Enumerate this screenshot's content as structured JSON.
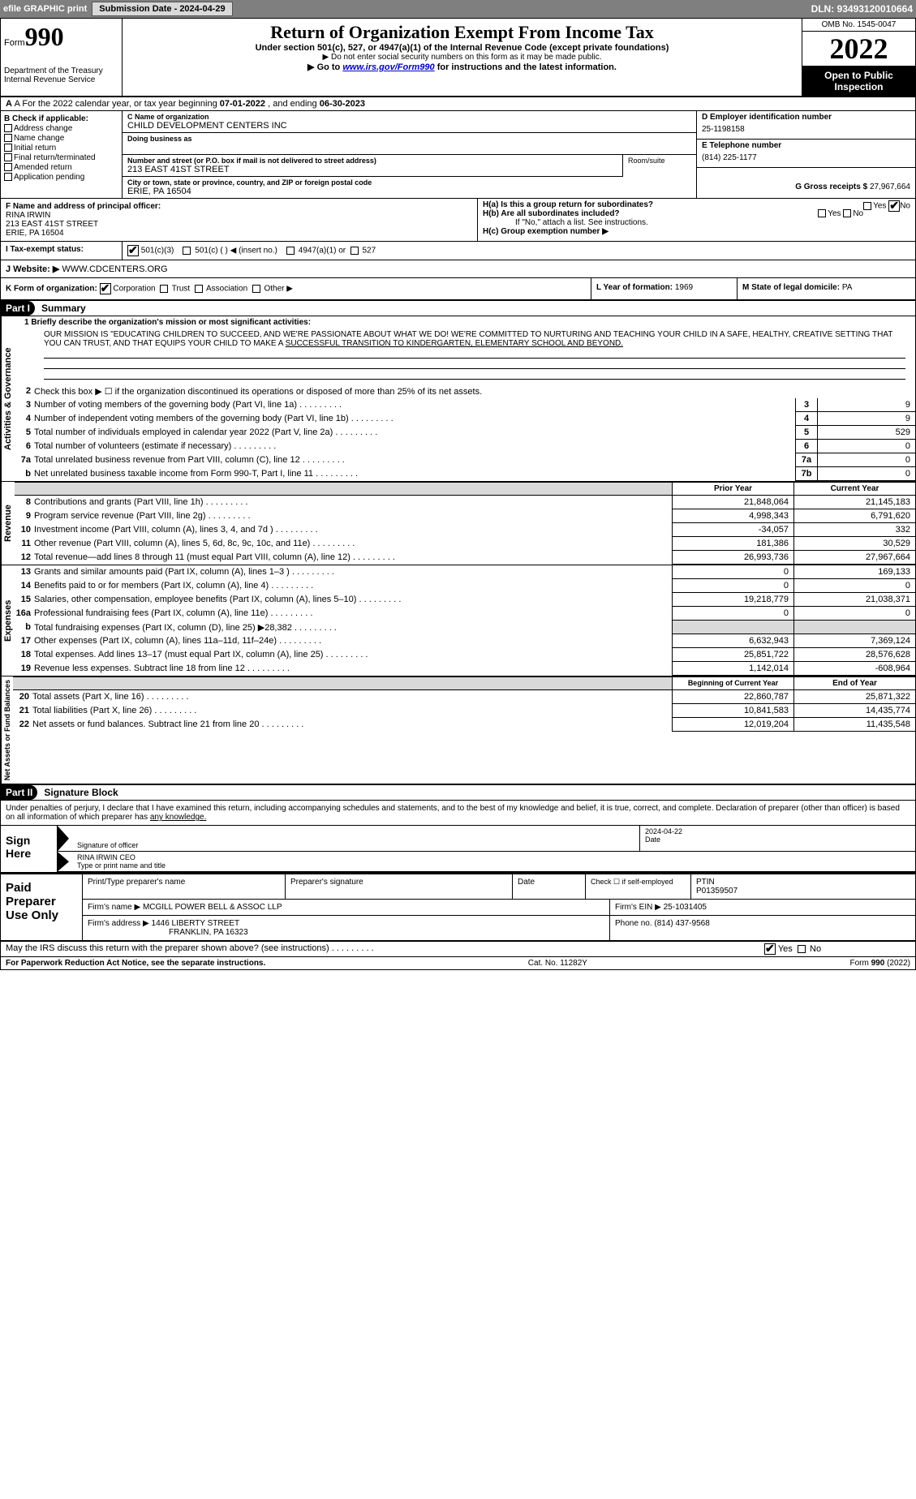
{
  "topbar": {
    "efile": "efile GRAPHIC print",
    "btn": "Submission Date - 2024-04-29",
    "dln": "DLN: 93493120010664"
  },
  "header": {
    "form_label": "Form",
    "form_no": "990",
    "title": "Return of Organization Exempt From Income Tax",
    "subtitle": "Under section 501(c), 527, or 4947(a)(1) of the Internal Revenue Code (except private foundations)",
    "note1": "▶ Do not enter social security numbers on this form as it may be made public.",
    "note2_pre": "▶ Go to ",
    "note2_link": "www.irs.gov/Form990",
    "note2_post": " for instructions and the latest information.",
    "dept": "Department of the Treasury\nInternal Revenue Service",
    "omb": "OMB No. 1545-0047",
    "year": "2022",
    "inspection": "Open to Public Inspection"
  },
  "row_a": {
    "text_pre": "A For the 2022 calendar year, or tax year beginning ",
    "begin": "07-01-2022",
    "mid": "    , and ending ",
    "end": "06-30-2023"
  },
  "box_b": {
    "label": "B Check if applicable:",
    "items": [
      "Address change",
      "Name change",
      "Initial return",
      "Final return/terminated",
      "Amended return",
      "Application pending"
    ]
  },
  "box_c": {
    "name_label": "C Name of organization",
    "name": "CHILD DEVELOPMENT CENTERS INC",
    "dba_label": "Doing business as",
    "addr_label": "Number and street (or P.O. box if mail is not delivered to street address)",
    "addr": "213 EAST 41ST STREET",
    "room_label": "Room/suite",
    "city_label": "City or town, state or province, country, and ZIP or foreign postal code",
    "city": "ERIE, PA  16504"
  },
  "box_d": {
    "label": "D Employer identification number",
    "val": "25-1198158"
  },
  "box_e": {
    "label": "E Telephone number",
    "val": "(814) 225-1177"
  },
  "box_g": {
    "label": "G Gross receipts $",
    "val": "27,967,664"
  },
  "box_f": {
    "label": "F Name and address of principal officer:",
    "name": "RINA IRWIN",
    "addr": "213 EAST 41ST STREET",
    "city": "ERIE, PA  16504"
  },
  "box_h": {
    "a": "H(a)  Is this a group return for subordinates?",
    "b": "H(b)  Are all subordinates included?",
    "note": "If \"No,\" attach a list. See instructions.",
    "c": "H(c)  Group exemption number ▶"
  },
  "box_i": {
    "label": "I  Tax-exempt status:",
    "opt1": "501(c)(3)",
    "opt2": "501(c) (   ) ◀ (insert no.)",
    "opt3": "4947(a)(1) or",
    "opt4": "527"
  },
  "box_j": {
    "label": "J  Website: ▶",
    "val": "WWW.CDCENTERS.ORG"
  },
  "box_k": {
    "label": "K Form of organization:",
    "opts": [
      "Corporation",
      "Trust",
      "Association",
      "Other ▶"
    ]
  },
  "box_l": {
    "label": "L Year of formation:",
    "val": "1969"
  },
  "box_m": {
    "label": "M State of legal domicile:",
    "val": "PA"
  },
  "part1": {
    "hdr": "Part I",
    "title": "Summary",
    "tab1": "Activities & Governance",
    "tab2": "Revenue",
    "tab3": "Expenses",
    "tab4": "Net Assets or Fund Balances",
    "line1_label": "1  Briefly describe the organization's mission or most significant activities:",
    "mission": "OUR MISSION IS \"EDUCATING CHILDREN TO SUCCEED, AND WE'RE PASSIONATE ABOUT WHAT WE DO! WE'RE COMMITTED TO NURTURING AND TEACHING YOUR CHILD IN A SAFE, HEALTHY, CREATIVE SETTING THAT YOU CAN TRUST, AND THAT EQUIPS YOUR CHILD TO MAKE A ",
    "mission2": "SUCCESSFUL TRANSITION TO KINDERGARTEN, ELEMENTARY SCHOOL AND BEYOND.",
    "line2": "Check this box ▶ ☐  if the organization discontinued its operations or disposed of more than 25% of its net assets.",
    "rows_ag": [
      {
        "n": "3",
        "t": "Number of voting members of the governing body (Part VI, line 1a)",
        "b": "3",
        "v": "9"
      },
      {
        "n": "4",
        "t": "Number of independent voting members of the governing body (Part VI, line 1b)",
        "b": "4",
        "v": "9"
      },
      {
        "n": "5",
        "t": "Total number of individuals employed in calendar year 2022 (Part V, line 2a)",
        "b": "5",
        "v": "529"
      },
      {
        "n": "6",
        "t": "Total number of volunteers (estimate if necessary)",
        "b": "6",
        "v": "0"
      },
      {
        "n": "7a",
        "t": "Total unrelated business revenue from Part VIII, column (C), line 12",
        "b": "7a",
        "v": "0"
      },
      {
        "n": "b",
        "t": "Net unrelated business taxable income from Form 990-T, Part I, line 11",
        "b": "7b",
        "v": "0"
      }
    ],
    "col_prior": "Prior Year",
    "col_current": "Current Year",
    "rows_rev": [
      {
        "n": "8",
        "t": "Contributions and grants (Part VIII, line 1h)",
        "p": "21,848,064",
        "c": "21,145,183"
      },
      {
        "n": "9",
        "t": "Program service revenue (Part VIII, line 2g)",
        "p": "4,998,343",
        "c": "6,791,620"
      },
      {
        "n": "10",
        "t": "Investment income (Part VIII, column (A), lines 3, 4, and 7d )",
        "p": "-34,057",
        "c": "332"
      },
      {
        "n": "11",
        "t": "Other revenue (Part VIII, column (A), lines 5, 6d, 8c, 9c, 10c, and 11e)",
        "p": "181,386",
        "c": "30,529"
      },
      {
        "n": "12",
        "t": "Total revenue—add lines 8 through 11 (must equal Part VIII, column (A), line 12)",
        "p": "26,993,736",
        "c": "27,967,664"
      }
    ],
    "rows_exp": [
      {
        "n": "13",
        "t": "Grants and similar amounts paid (Part IX, column (A), lines 1–3 )",
        "p": "0",
        "c": "169,133"
      },
      {
        "n": "14",
        "t": "Benefits paid to or for members (Part IX, column (A), line 4)",
        "p": "0",
        "c": "0"
      },
      {
        "n": "15",
        "t": "Salaries, other compensation, employee benefits (Part IX, column (A), lines 5–10)",
        "p": "19,218,779",
        "c": "21,038,371"
      },
      {
        "n": "16a",
        "t": "Professional fundraising fees (Part IX, column (A), line 11e)",
        "p": "0",
        "c": "0"
      },
      {
        "n": "b",
        "t": "Total fundraising expenses (Part IX, column (D), line 25) ▶28,382",
        "p": "",
        "c": ""
      },
      {
        "n": "17",
        "t": "Other expenses (Part IX, column (A), lines 11a–11d, 11f–24e)",
        "p": "6,632,943",
        "c": "7,369,124"
      },
      {
        "n": "18",
        "t": "Total expenses. Add lines 13–17 (must equal Part IX, column (A), line 25)",
        "p": "25,851,722",
        "c": "28,576,628"
      },
      {
        "n": "19",
        "t": "Revenue less expenses. Subtract line 18 from line 12",
        "p": "1,142,014",
        "c": "-608,964"
      }
    ],
    "col_begin": "Beginning of Current Year",
    "col_end": "End of Year",
    "rows_net": [
      {
        "n": "20",
        "t": "Total assets (Part X, line 16)",
        "p": "22,860,787",
        "c": "25,871,322"
      },
      {
        "n": "21",
        "t": "Total liabilities (Part X, line 26)",
        "p": "10,841,583",
        "c": "14,435,774"
      },
      {
        "n": "22",
        "t": "Net assets or fund balances. Subtract line 21 from line 20",
        "p": "12,019,204",
        "c": "11,435,548"
      }
    ]
  },
  "part2": {
    "hdr": "Part II",
    "title": "Signature Block",
    "text": "Under penalties of perjury, I declare that I have examined this return, including accompanying schedules and statements, and to the best of my knowledge and belief, it is true, correct, and complete. Declaration of preparer (other than officer) is based on all information of which preparer has ",
    "text2": "any knowledge.",
    "sign_here": "Sign Here",
    "sig_officer": "Signature of officer",
    "date": "Date",
    "date_val": "2024-04-22",
    "name": "RINA IRWIN  CEO",
    "name_label": "Type or print name and title",
    "paid": "Paid Preparer Use Only",
    "prep_name_label": "Print/Type preparer's name",
    "prep_sig_label": "Preparer's signature",
    "check_label": "Check ☐ if self-employed",
    "ptin_label": "PTIN",
    "ptin": "P01359507",
    "firm_name_label": "Firm's name    ▶",
    "firm_name": "MCGILL POWER BELL & ASSOC LLP",
    "firm_ein_label": "Firm's EIN ▶",
    "firm_ein": "25-1031405",
    "firm_addr_label": "Firm's address ▶",
    "firm_addr": "1446 LIBERTY STREET",
    "firm_city": "FRANKLIN, PA  16323",
    "phone_label": "Phone no.",
    "phone": "(814) 437-9568",
    "discuss": "May the IRS discuss this return with the preparer shown above? (see instructions)",
    "yes": "Yes",
    "no": "No"
  },
  "footer": {
    "left": "For Paperwork Reduction Act Notice, see the separate instructions.",
    "mid": "Cat. No. 11282Y",
    "right": "Form 990 (2022)"
  }
}
